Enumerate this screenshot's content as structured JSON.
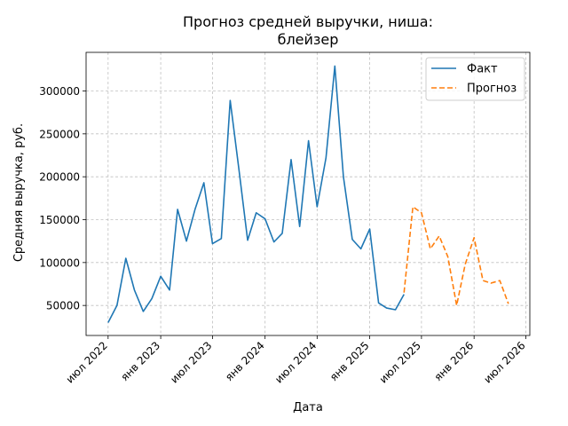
{
  "chart_data": {
    "type": "line",
    "title": "Прогноз средней выручки, ниша:\nблейзер",
    "xlabel": "Дата",
    "ylabel": "Средняя выручка, руб.",
    "x_ticks": [
      "2022-07-01",
      "2023-01-01",
      "2023-07-01",
      "2024-01-01",
      "2024-07-01",
      "2025-01-01",
      "2025-07-01",
      "2026-01-01",
      "2026-07-01"
    ],
    "x_tick_labels": [
      "июл 2022",
      "янв 2023",
      "июл 2023",
      "янв 2024",
      "июл 2024",
      "янв 2025",
      "июл 2025",
      "янв 2026",
      "июл 2026"
    ],
    "xlim": [
      "2022-04-15",
      "2026-07-15"
    ],
    "y_ticks": [
      50000,
      100000,
      150000,
      200000,
      250000,
      300000
    ],
    "y_tick_labels": [
      "50000",
      "100000",
      "150000",
      "200000",
      "250000",
      "300000"
    ],
    "ylim": [
      15000,
      345000
    ],
    "grid": true,
    "legend_position": "top-right",
    "series": [
      {
        "name": "Факт",
        "color": "#1f77b4",
        "dash": "solid",
        "x": [
          "2022-07-01",
          "2022-08-01",
          "2022-09-01",
          "2022-10-01",
          "2022-11-01",
          "2022-12-01",
          "2023-01-01",
          "2023-02-01",
          "2023-03-01",
          "2023-04-01",
          "2023-05-01",
          "2023-06-01",
          "2023-07-01",
          "2023-08-01",
          "2023-09-01",
          "2023-10-01",
          "2023-11-01",
          "2023-12-01",
          "2024-01-01",
          "2024-02-01",
          "2024-03-01",
          "2024-04-01",
          "2024-05-01",
          "2024-06-01",
          "2024-07-01",
          "2024-08-01",
          "2024-09-01",
          "2024-10-01",
          "2024-11-01",
          "2024-12-01",
          "2025-01-01",
          "2025-02-01",
          "2025-03-01",
          "2025-04-01",
          "2025-05-01"
        ],
        "y": [
          30000,
          50000,
          105000,
          68000,
          43000,
          58000,
          84000,
          68000,
          162000,
          125000,
          162000,
          193000,
          122000,
          128000,
          289000,
          210000,
          126000,
          158000,
          151000,
          124000,
          134000,
          220000,
          142000,
          242000,
          165000,
          222000,
          329000,
          200000,
          127000,
          116000,
          139000,
          53000,
          47000,
          45000,
          63000
        ]
      },
      {
        "name": "Прогноз",
        "color": "#ff7f0e",
        "dash": "dashed",
        "x": [
          "2025-05-01",
          "2025-06-01",
          "2025-07-01",
          "2025-08-01",
          "2025-09-01",
          "2025-10-01",
          "2025-11-01",
          "2025-12-01",
          "2026-01-01",
          "2026-02-01",
          "2026-03-01",
          "2026-04-01",
          "2026-05-01"
        ],
        "y": [
          65000,
          165000,
          158000,
          116000,
          131000,
          107000,
          50000,
          98000,
          129000,
          79000,
          76000,
          79000,
          52000
        ]
      }
    ]
  }
}
